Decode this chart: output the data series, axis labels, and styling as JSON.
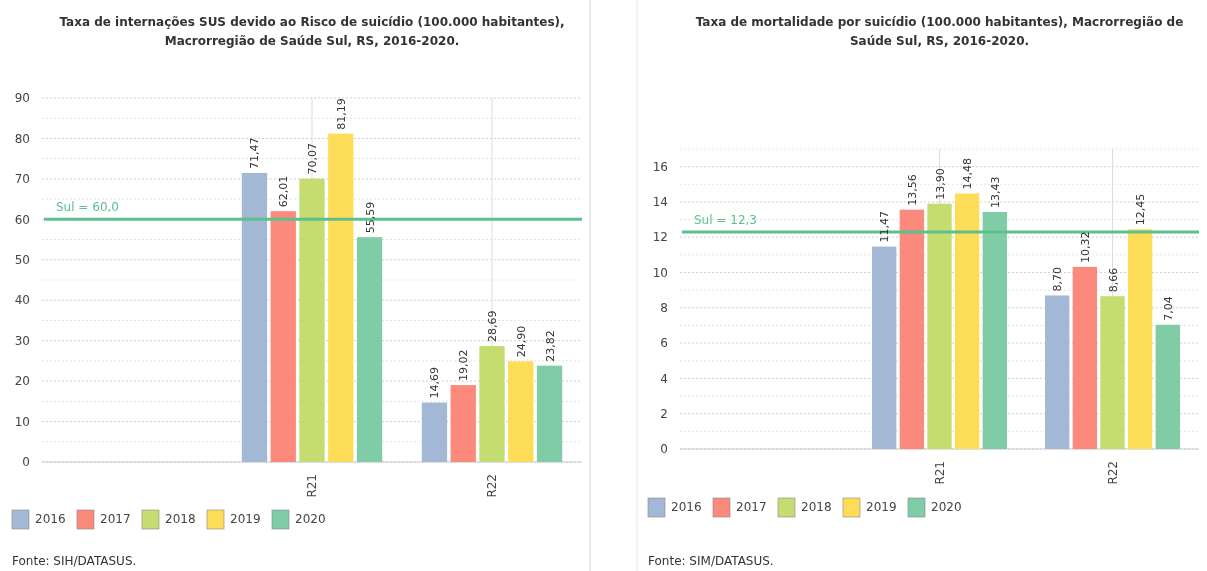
{
  "chart_data": [
    {
      "type": "bar",
      "title": "Taxa de internações SUS devido ao Risco de suicídio (100.000 habitantes), Macrorregião de Saúde Sul, RS, 2016-2020.",
      "categories": [
        null,
        "R21",
        "R22"
      ],
      "series": [
        {
          "name": "2016",
          "color": "#a3b8d4",
          "values": [
            null,
            71.47,
            14.69
          ],
          "value_labels": [
            null,
            "71,47",
            "14,69"
          ]
        },
        {
          "name": "2017",
          "color": "#fb8a7c",
          "values": [
            null,
            62.01,
            19.02
          ],
          "value_labels": [
            null,
            "62,01",
            "19,02"
          ]
        },
        {
          "name": "2018",
          "color": "#c5dc70",
          "values": [
            null,
            70.07,
            28.69
          ],
          "value_labels": [
            null,
            "70,07",
            "28,69"
          ]
        },
        {
          "name": "2019",
          "color": "#fddd57",
          "values": [
            null,
            81.19,
            24.9
          ],
          "value_labels": [
            null,
            "81,19",
            "24,90"
          ]
        },
        {
          "name": "2020",
          "color": "#80cca7",
          "values": [
            null,
            55.59,
            23.82
          ],
          "value_labels": [
            null,
            "55,59",
            "23,82"
          ]
        }
      ],
      "ylim": [
        0,
        90
      ],
      "yticks": [
        0,
        {
          "value": 5,
          "label": null
        },
        10,
        {
          "value": 15,
          "label": null
        },
        20,
        {
          "value": 25,
          "label": null
        },
        30,
        {
          "value": 35,
          "label": null
        },
        40,
        {
          "value": 45,
          "label": null
        },
        50,
        {
          "value": 55,
          "label": null
        },
        60,
        {
          "value": 65,
          "label": null
        },
        70,
        {
          "value": 75,
          "label": null
        },
        80,
        {
          "value": 85,
          "label": null
        },
        90
      ],
      "grid": true,
      "legend": "bottom left",
      "ref_lines": [
        {
          "axis": "y",
          "value": 60.0,
          "label": "Sul = 60,0",
          "color": "#5cbf8c"
        }
      ],
      "annotations": [
        "Fonte: SIH/DATASUS."
      ]
    },
    {
      "type": "bar",
      "title": "Taxa de mortalidade por suicídio (100.000 habitantes), Macrorregião de Saúde Sul, RS, 2016-2020.",
      "categories": [
        null,
        "R21",
        "R22"
      ],
      "series": [
        {
          "name": "2016",
          "color": "#a3b8d4",
          "values": [
            null,
            11.47,
            8.7
          ],
          "value_labels": [
            null,
            "11,47",
            "8,70"
          ]
        },
        {
          "name": "2017",
          "color": "#fb8a7c",
          "values": [
            null,
            13.56,
            10.32
          ],
          "value_labels": [
            null,
            "13,56",
            "10,32"
          ]
        },
        {
          "name": "2018",
          "color": "#c5dc70",
          "values": [
            null,
            13.9,
            8.66
          ],
          "value_labels": [
            null,
            "13,90",
            "8,66"
          ]
        },
        {
          "name": "2019",
          "color": "#fddd57",
          "values": [
            null,
            14.48,
            12.45
          ],
          "value_labels": [
            null,
            "14,48",
            "12,45"
          ]
        },
        {
          "name": "2020",
          "color": "#80cca7",
          "values": [
            null,
            13.43,
            7.04
          ],
          "value_labels": [
            null,
            "13,43",
            "7,04"
          ]
        }
      ],
      "ylim": [
        0,
        17
      ],
      "yticks": [
        0,
        {
          "value": 1,
          "label": null
        },
        2,
        {
          "value": 3,
          "label": null
        },
        4,
        {
          "value": 5,
          "label": null
        },
        6,
        {
          "value": 7,
          "label": null
        },
        8,
        {
          "value": 9,
          "label": null
        },
        10,
        {
          "value": 11,
          "label": null
        },
        12,
        {
          "value": 13,
          "label": null
        },
        14,
        {
          "value": 15,
          "label": null
        },
        16,
        {
          "value": 17,
          "label": null
        }
      ],
      "grid": true,
      "legend": "bottom left",
      "ref_lines": [
        {
          "axis": "y",
          "value": 12.3,
          "label": "Sul = 12,3",
          "color": "#5cbf8c"
        }
      ],
      "annotations": [
        "Fonte: SIM/DATASUS."
      ]
    }
  ]
}
